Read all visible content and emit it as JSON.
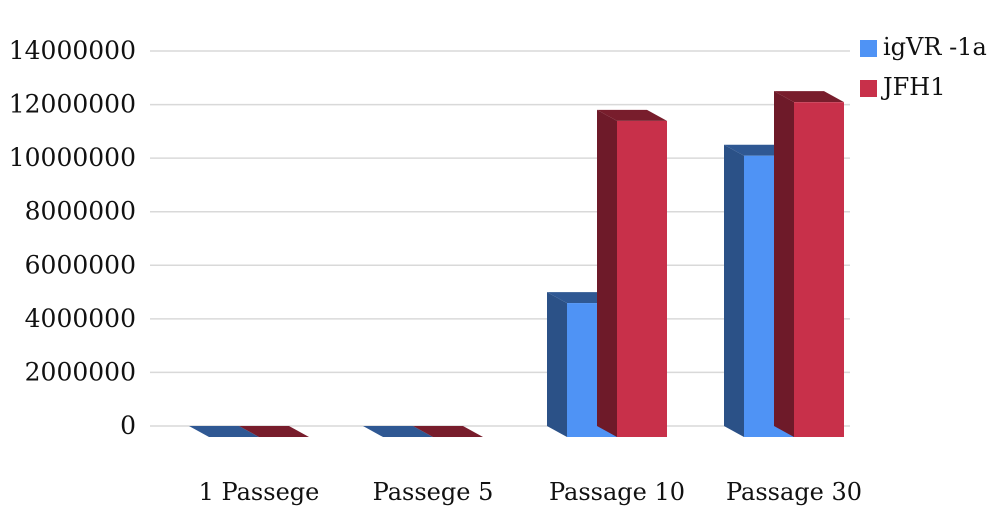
{
  "chart_data": {
    "type": "bar",
    "title": "",
    "xlabel": "",
    "ylabel": "",
    "categories": [
      "1 Passege",
      "Passege 5",
      "Passage 10",
      "Passage 30"
    ],
    "series": [
      {
        "name": "igVR -1a",
        "values": [
          0,
          0,
          5000000,
          10500000
        ],
        "color": "#4f93f5"
      },
      {
        "name": "JFH1",
        "values": [
          0,
          0,
          11800000,
          12500000
        ],
        "color": "#c8304a"
      }
    ],
    "ylim": [
      0,
      14000000
    ],
    "yticks": [
      0,
      2000000,
      4000000,
      6000000,
      8000000,
      10000000,
      12000000,
      14000000
    ],
    "ytick_labels": [
      "0",
      "2000000",
      "4000000",
      "6000000",
      "8000000",
      "10000000",
      "12000000",
      "14000000"
    ],
    "grid": true,
    "legend_position": "top-right",
    "style": "3d-column"
  }
}
